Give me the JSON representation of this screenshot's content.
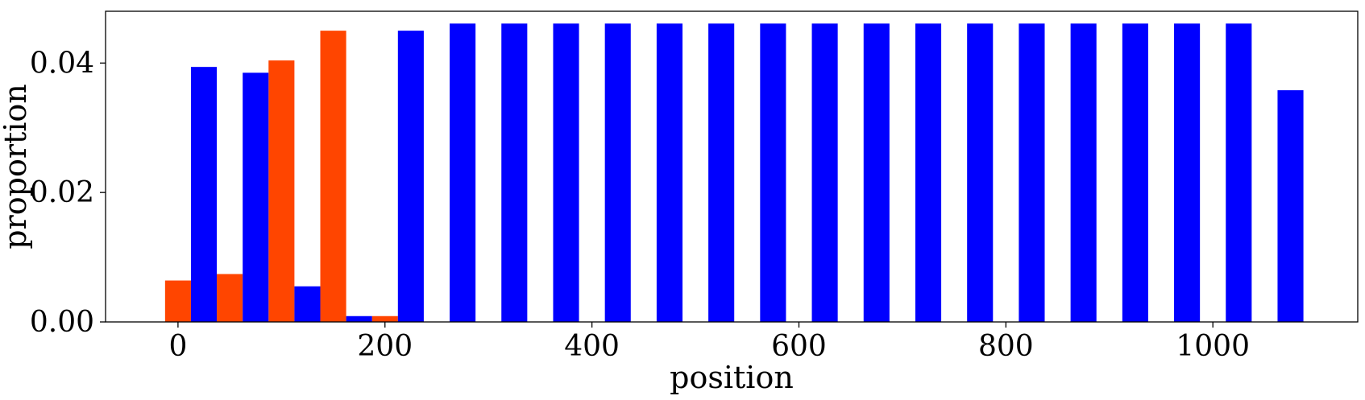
{
  "chart_data": {
    "type": "bar",
    "title": "",
    "xlabel": "position",
    "ylabel": "proportion",
    "xlim": [
      -70,
      1140
    ],
    "ylim": [
      0,
      0.048
    ],
    "xticks": [
      0,
      200,
      400,
      600,
      800,
      1000
    ],
    "xtick_labels": [
      "0",
      "200",
      "400",
      "600",
      "800",
      "1000"
    ],
    "yticks": [
      0,
      0.02,
      0.04
    ],
    "ytick_labels": [
      "0.00",
      "0.02",
      "0.04"
    ],
    "grid": false,
    "bar_width": 25,
    "series": [
      {
        "color": "#ff4500",
        "x": [
          0,
          50,
          100,
          150,
          200
        ],
        "values": [
          0.0064,
          0.0074,
          0.0404,
          0.045,
          0.0009
        ]
      },
      {
        "color": "#0000ff",
        "x": [
          25,
          75,
          125,
          175,
          225,
          275,
          325,
          375,
          425,
          475,
          525,
          575,
          625,
          675,
          725,
          775,
          825,
          875,
          925,
          975,
          1025,
          1075
        ],
        "values": [
          0.0394,
          0.0385,
          0.0055,
          0.0009,
          0.045,
          0.0461,
          0.0461,
          0.0461,
          0.0461,
          0.0461,
          0.0461,
          0.0461,
          0.0461,
          0.0461,
          0.0461,
          0.0461,
          0.0461,
          0.0461,
          0.0461,
          0.0461,
          0.0461,
          0.0358
        ]
      }
    ]
  }
}
